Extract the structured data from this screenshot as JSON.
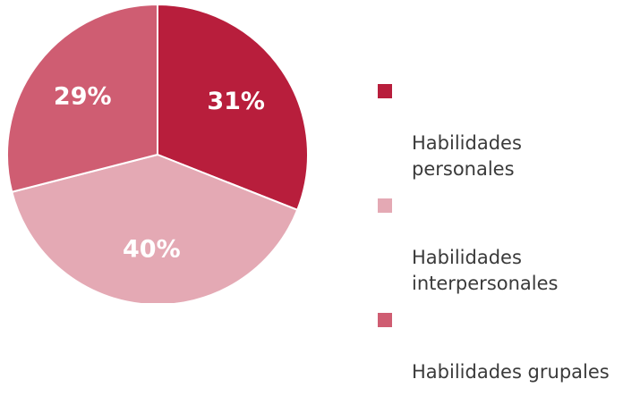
{
  "chart_data": {
    "type": "pie",
    "title": "",
    "slices": [
      {
        "name": "Habilidades personales",
        "value": 31,
        "label": "31%",
        "color": "#b81e3c"
      },
      {
        "name": "Habilidades interpersonales",
        "value": 40,
        "label": "40%",
        "color": "#e4a9b4"
      },
      {
        "name": "Habilidades grupales",
        "value": 29,
        "label": "29%",
        "color": "#cf5d72"
      }
    ],
    "legend": {
      "placement": "right",
      "items": [
        {
          "label": "Habilidades\npersonales",
          "color": "#b81e3c"
        },
        {
          "label": "Habilidades\ninterpersonales",
          "color": "#e4a9b4"
        },
        {
          "label": "Habilidades grupales",
          "color": "#cf5d72"
        }
      ]
    },
    "start_angle_deg": 0,
    "direction": "clockwise",
    "slice_border_color": "#ffffff"
  }
}
